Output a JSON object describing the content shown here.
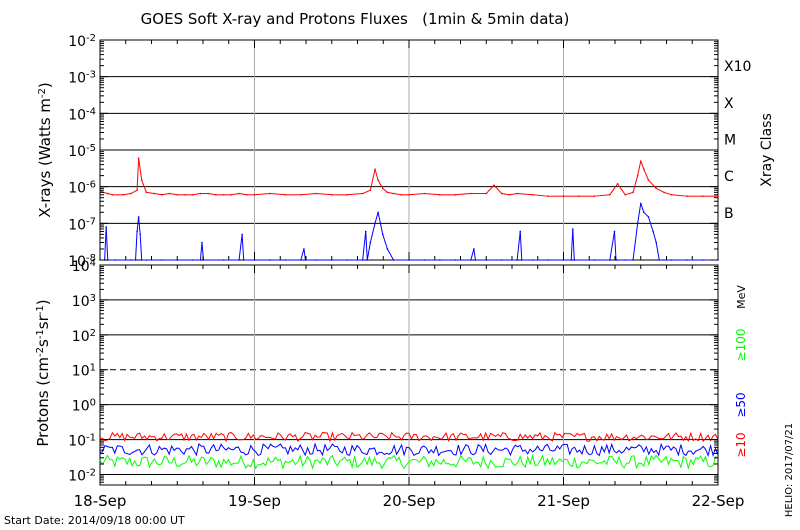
{
  "title": "GOES Soft X-ray and Protons Fluxes   (1min & 5min data)",
  "footer": {
    "start_date": "Start Date: 2014/09/18 00:00 UT",
    "credit": "HELIO: 2017/07/21"
  },
  "colors": {
    "xray_long": "#ff0000",
    "xray_short": "#0000ff",
    "p10": "#ff0000",
    "p50": "#0000ff",
    "p100": "#00ff00",
    "day_lines": "#aaaaaa",
    "grid": "#000000"
  },
  "chart_data": [
    {
      "type": "line",
      "panel": "xray",
      "title": "GOES Soft X-ray and Protons Fluxes   (1min & 5min data)",
      "xlabel": "",
      "ylabel": "X-rays (Watts m-2)",
      "ylabel_right": "Xray Class",
      "yscale": "log",
      "ylim": [
        1e-08,
        0.01
      ],
      "xlim": [
        "2014-09-18",
        "2014-09-22"
      ],
      "x_tick_labels": [
        "18-Sep",
        "19-Sep",
        "20-Sep",
        "21-Sep",
        "22-Sep"
      ],
      "y_tick_labels": [
        {
          "base": "10",
          "exp": "-8"
        },
        {
          "base": "10",
          "exp": "-7"
        },
        {
          "base": "10",
          "exp": "-6"
        },
        {
          "base": "10",
          "exp": "-5"
        },
        {
          "base": "10",
          "exp": "-4"
        },
        {
          "base": "10",
          "exp": "-3"
        },
        {
          "base": "10",
          "exp": "-2"
        }
      ],
      "class_labels": [
        {
          "label": "B",
          "value": 1e-07
        },
        {
          "label": "C",
          "value": 1e-06
        },
        {
          "label": "M",
          "value": 1e-05
        },
        {
          "label": "X",
          "value": 0.0001
        },
        {
          "label": "X10",
          "value": 0.001
        }
      ],
      "grid": true,
      "series": [
        {
          "color": "#ff0000",
          "x": [
            0.0,
            0.02,
            0.05,
            0.08,
            0.15,
            0.2,
            0.24,
            0.25,
            0.27,
            0.3,
            0.35,
            0.4,
            0.45,
            0.5,
            0.55,
            0.6,
            0.65,
            0.7,
            0.75,
            0.8,
            0.85,
            0.9,
            0.95,
            1.0,
            1.1,
            1.2,
            1.3,
            1.4,
            1.5,
            1.6,
            1.7,
            1.75,
            1.78,
            1.8,
            1.83,
            1.86,
            1.9,
            1.95,
            2.0,
            2.1,
            2.2,
            2.3,
            2.4,
            2.5,
            2.55,
            2.6,
            2.65,
            2.7,
            2.8,
            2.9,
            3.0,
            3.1,
            3.2,
            3.3,
            3.35,
            3.4,
            3.45,
            3.48,
            3.5,
            3.52,
            3.55,
            3.6,
            3.65,
            3.7,
            3.8,
            3.9,
            4.0
          ],
          "y": [
            8e-07,
            7e-07,
            6.5e-07,
            6e-07,
            6e-07,
            6.5e-07,
            8e-07,
            6e-06,
            1.5e-06,
            7e-07,
            6.5e-07,
            6e-07,
            6.5e-07,
            6e-07,
            6e-07,
            6e-07,
            6.5e-07,
            6.5e-07,
            6e-07,
            6e-07,
            6e-07,
            6.5e-07,
            6e-07,
            6e-07,
            6.5e-07,
            6e-07,
            6e-07,
            6.5e-07,
            6e-07,
            6e-07,
            6.5e-07,
            8e-07,
            3e-06,
            1.5e-06,
            9e-07,
            7e-07,
            6.5e-07,
            6e-07,
            6e-07,
            6.5e-07,
            6e-07,
            6e-07,
            6.5e-07,
            6.5e-07,
            1.1e-06,
            6.5e-07,
            6e-07,
            6.5e-07,
            6e-07,
            5.5e-07,
            5.5e-07,
            5.5e-07,
            5.5e-07,
            6e-07,
            1.2e-06,
            6e-07,
            7e-07,
            2e-06,
            5e-06,
            3e-06,
            1.5e-06,
            9e-07,
            7e-07,
            6e-07,
            5.5e-07,
            5.5e-07,
            5.5e-07
          ]
        },
        {
          "color": "#0000ff",
          "x": [
            0.0,
            0.03,
            0.04,
            0.05,
            0.1,
            0.2,
            0.23,
            0.24,
            0.25,
            0.26,
            0.27,
            0.3,
            0.4,
            0.5,
            0.6,
            0.65,
            0.66,
            0.67,
            0.8,
            0.9,
            0.92,
            0.93,
            1.0,
            1.1,
            1.2,
            1.3,
            1.32,
            1.33,
            1.4,
            1.5,
            1.6,
            1.7,
            1.72,
            1.73,
            1.75,
            1.78,
            1.8,
            1.83,
            1.86,
            1.9,
            2.0,
            2.1,
            2.2,
            2.3,
            2.4,
            2.42,
            2.43,
            2.5,
            2.6,
            2.7,
            2.72,
            2.73,
            2.8,
            2.9,
            3.0,
            3.05,
            3.06,
            3.07,
            3.2,
            3.3,
            3.33,
            3.34,
            3.35,
            3.4,
            3.45,
            3.48,
            3.5,
            3.52,
            3.55,
            3.58,
            3.6,
            3.62,
            3.65,
            3.7,
            3.8,
            3.9,
            4.0
          ],
          "y": [
            1e-08,
            1e-08,
            8e-08,
            1e-08,
            1e-08,
            1e-08,
            1e-08,
            6e-08,
            1.5e-07,
            5e-08,
            1e-08,
            1e-08,
            1e-08,
            1e-08,
            1e-08,
            1e-08,
            3e-08,
            1e-08,
            1e-08,
            1e-08,
            5e-08,
            1e-08,
            1e-08,
            1e-08,
            1e-08,
            1e-08,
            2e-08,
            1e-08,
            1e-08,
            1e-08,
            1e-08,
            1e-08,
            6e-08,
            1e-08,
            3e-08,
            1e-07,
            2e-07,
            5e-08,
            2e-08,
            1e-08,
            1e-08,
            1e-08,
            1e-08,
            1e-08,
            1e-08,
            2e-08,
            1e-08,
            1e-08,
            1e-08,
            1e-08,
            6e-08,
            1e-08,
            1e-08,
            1e-08,
            1e-08,
            1e-08,
            7e-08,
            1e-08,
            1e-08,
            1e-08,
            6e-08,
            1e-08,
            1e-08,
            1e-08,
            1e-08,
            1e-07,
            3.5e-07,
            2e-07,
            1.5e-07,
            6e-08,
            3e-08,
            1e-08,
            1e-08,
            1e-08,
            1e-08,
            1e-08,
            1e-08
          ]
        }
      ]
    },
    {
      "type": "line",
      "panel": "protons",
      "xlabel": "",
      "ylabel": "Protons (cm-2s-1sr-1)",
      "yscale": "log",
      "ylim": [
        0.005,
        10000
      ],
      "xlim": [
        "2014-09-18",
        "2014-09-22"
      ],
      "x_tick_labels": [
        "18-Sep",
        "19-Sep",
        "20-Sep",
        "21-Sep",
        "22-Sep"
      ],
      "y_tick_labels": [
        {
          "base": "10",
          "exp": "-2"
        },
        {
          "base": "10",
          "exp": "-1"
        },
        {
          "base": "10",
          "exp": "0"
        },
        {
          "base": "10",
          "exp": "1"
        },
        {
          "base": "10",
          "exp": "2"
        },
        {
          "base": "10",
          "exp": "3"
        },
        {
          "base": "10",
          "exp": "4"
        }
      ],
      "threshold_line": 10,
      "unit_label": "MeV",
      "grid": true,
      "series": [
        {
          "name": "≥10",
          "color": "#ff0000",
          "level": [
            0.09,
            0.16
          ]
        },
        {
          "name": "≥50",
          "color": "#0000ff",
          "level": [
            0.035,
            0.075
          ]
        },
        {
          "name": "≥100",
          "color": "#00ff00",
          "level": [
            0.015,
            0.035
          ]
        }
      ]
    }
  ]
}
